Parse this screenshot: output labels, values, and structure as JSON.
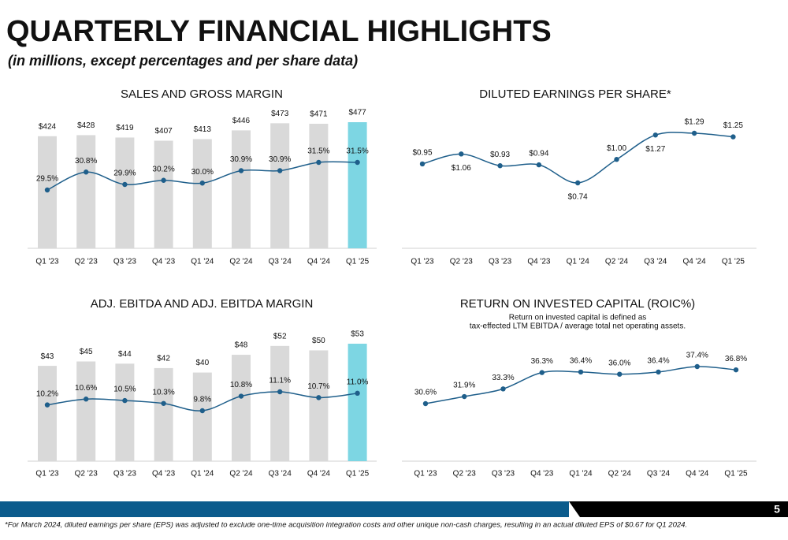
{
  "title": "QUARTERLY FINANCIAL HIGHLIGHTS",
  "subtitle": "(in millions, except percentages and per share data)",
  "page_number": "5",
  "footnote": "*For March 2024, diluted earnings per share (EPS) was adjusted to exclude one-time acquisition integration costs and other unique non-cash charges, resulting in an actual diluted EPS of $0.67 for Q1 2024.",
  "chart_data": [
    {
      "type": "bar_line",
      "title": "SALES AND GROSS MARGIN",
      "categories": [
        "Q1 '23",
        "Q2 '23",
        "Q3 '23",
        "Q4 '23",
        "Q1 '24",
        "Q2 '24",
        "Q3 '24",
        "Q4 '24",
        "Q1 '25"
      ],
      "series": [
        {
          "kind": "bar",
          "values": [
            424,
            428,
            419,
            407,
            413,
            446,
            473,
            471,
            477
          ],
          "value_labels": [
            "$424",
            "$428",
            "$419",
            "$407",
            "$413",
            "$446",
            "$473",
            "$471",
            "$477"
          ],
          "colors": [
            "#d9d9d9",
            "#d9d9d9",
            "#d9d9d9",
            "#d9d9d9",
            "#d9d9d9",
            "#d9d9d9",
            "#d9d9d9",
            "#d9d9d9",
            "#7dd6e3"
          ]
        },
        {
          "kind": "line",
          "color": "#1f5f8b",
          "values": [
            29.5,
            30.8,
            29.9,
            30.2,
            30.0,
            30.9,
            30.9,
            31.5,
            31.5
          ],
          "value_labels": [
            "29.5%",
            "30.8%",
            "29.9%",
            "30.2%",
            "30.0%",
            "30.9%",
            "30.9%",
            "31.5%",
            "31.5%"
          ]
        }
      ]
    },
    {
      "type": "line",
      "title": "DILUTED EARNINGS PER SHARE*",
      "categories": [
        "Q1 '23",
        "Q2 '23",
        "Q3 '23",
        "Q4 '23",
        "Q1 '24",
        "Q2 '24",
        "Q3 '24",
        "Q4 '24",
        "Q1 '25"
      ],
      "series": [
        {
          "kind": "line",
          "color": "#1f5f8b",
          "values": [
            0.95,
            1.06,
            0.93,
            0.94,
            0.74,
            1.0,
            1.27,
            1.29,
            1.25
          ],
          "value_labels": [
            "$0.95",
            "$1.06",
            "$0.93",
            "$0.94",
            "$0.74",
            "$1.00",
            "$1.27",
            "$1.29",
            "$1.25"
          ]
        }
      ]
    },
    {
      "type": "bar_line",
      "title": "ADJ. EBITDA AND ADJ. EBITDA MARGIN",
      "categories": [
        "Q1 '23",
        "Q2 '23",
        "Q3 '23",
        "Q4 '23",
        "Q1 '24",
        "Q2 '24",
        "Q3 '24",
        "Q4 '24",
        "Q1 '25"
      ],
      "series": [
        {
          "kind": "bar",
          "values": [
            43,
            45,
            44,
            42,
            40,
            48,
            52,
            50,
            53
          ],
          "value_labels": [
            "$43",
            "$45",
            "$44",
            "$42",
            "$40",
            "$48",
            "$52",
            "$50",
            "$53"
          ],
          "colors": [
            "#d9d9d9",
            "#d9d9d9",
            "#d9d9d9",
            "#d9d9d9",
            "#d9d9d9",
            "#d9d9d9",
            "#d9d9d9",
            "#d9d9d9",
            "#7dd6e3"
          ]
        },
        {
          "kind": "line",
          "color": "#1f5f8b",
          "values": [
            10.2,
            10.6,
            10.5,
            10.3,
            9.8,
            10.8,
            11.1,
            10.7,
            11.0
          ],
          "value_labels": [
            "10.2%",
            "10.6%",
            "10.5%",
            "10.3%",
            "9.8%",
            "10.8%",
            "11.1%",
            "10.7%",
            "11.0%"
          ]
        }
      ]
    },
    {
      "type": "line",
      "title": "RETURN ON INVESTED CAPITAL (ROIC%)",
      "subtitle": [
        "Return on invested capital is defined as",
        "tax-effected LTM EBITDA / average total net operating assets."
      ],
      "categories": [
        "Q1 '23",
        "Q2 '23",
        "Q3 '23",
        "Q4 '23",
        "Q1 '24",
        "Q2 '24",
        "Q3 '24",
        "Q4 '24",
        "Q1 '25"
      ],
      "series": [
        {
          "kind": "line",
          "color": "#1f5f8b",
          "values": [
            30.6,
            31.9,
            33.3,
            36.3,
            36.4,
            36.0,
            36.4,
            37.4,
            36.8
          ],
          "value_labels": [
            "30.6%",
            "31.9%",
            "33.3%",
            "36.3%",
            "36.4%",
            "36.0%",
            "36.4%",
            "37.4%",
            "36.8%"
          ]
        }
      ]
    }
  ]
}
